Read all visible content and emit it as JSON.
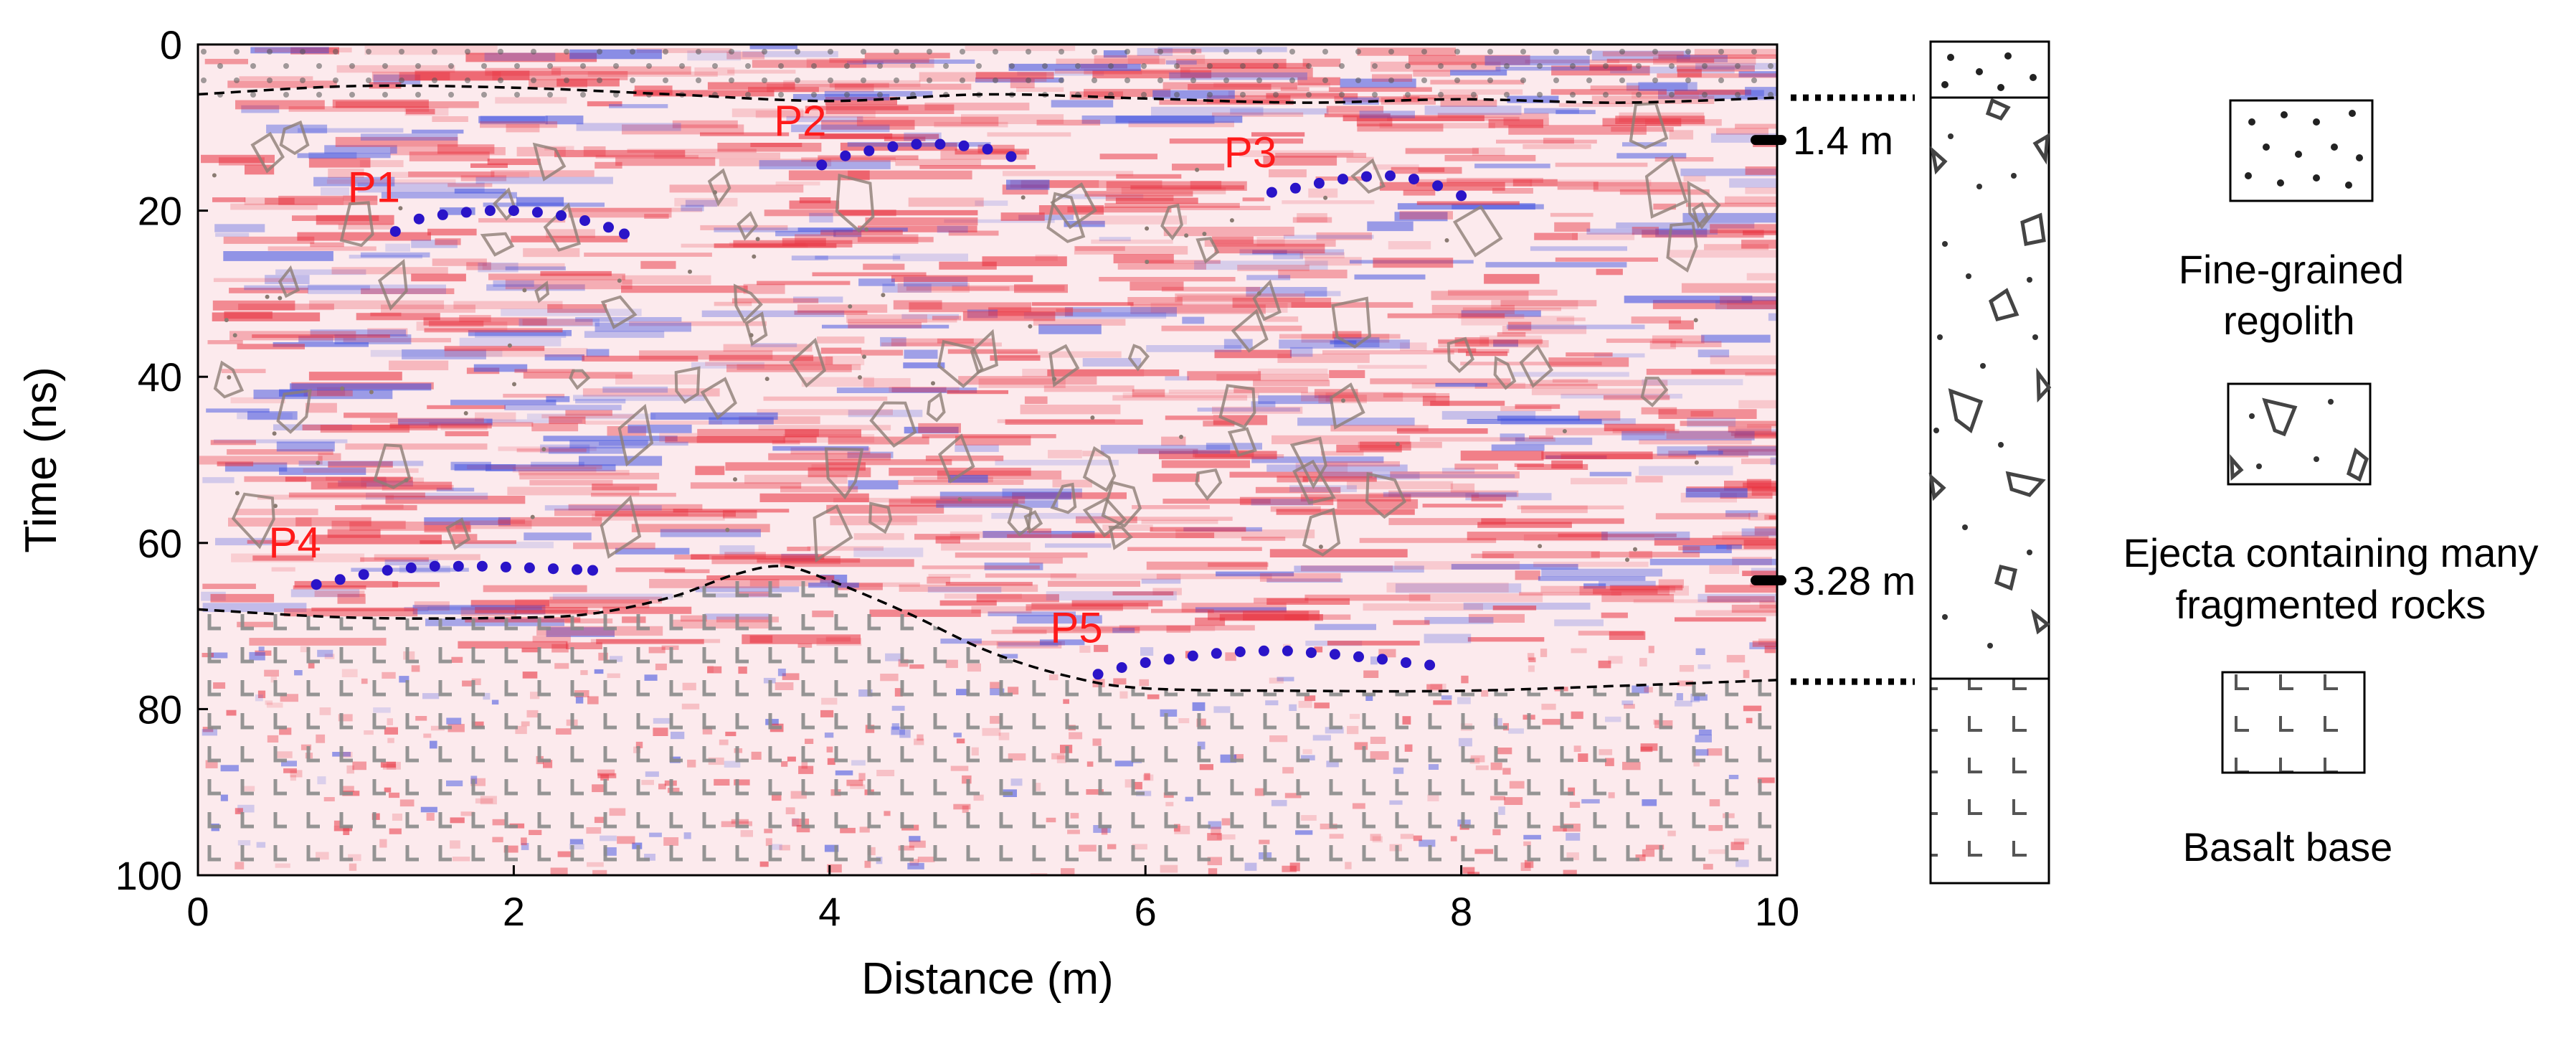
{
  "chart_data": {
    "type": "scatter",
    "title": "",
    "xlabel": "Distance (m)",
    "ylabel": "Time (ns)",
    "xlim": [
      0,
      10
    ],
    "ylim": [
      100,
      0
    ],
    "x_ticks": [
      0,
      2,
      4,
      6,
      8,
      10
    ],
    "y_ticks": [
      0,
      20,
      40,
      60,
      80,
      100
    ],
    "x_tick_labels": [
      "0",
      "2",
      "4",
      "6",
      "8",
      "10"
    ],
    "y_tick_labels": [
      "0",
      "20",
      "40",
      "60",
      "80",
      "100"
    ],
    "background": "GPR radargram (red/blue amplitude image)",
    "series": [
      {
        "name": "P1",
        "x": [
          1.25,
          1.4,
          1.55,
          1.7,
          1.85,
          2.0,
          2.15,
          2.3,
          2.45,
          2.6,
          2.7
        ],
        "y": [
          22.5,
          21.0,
          20.5,
          20.2,
          20.0,
          20.0,
          20.2,
          20.6,
          21.2,
          22.0,
          22.8
        ]
      },
      {
        "name": "P2",
        "x": [
          3.95,
          4.1,
          4.25,
          4.4,
          4.55,
          4.7,
          4.85,
          5.0,
          5.15
        ],
        "y": [
          14.5,
          13.4,
          12.8,
          12.3,
          12.0,
          12.0,
          12.2,
          12.6,
          13.5
        ]
      },
      {
        "name": "P3",
        "x": [
          6.8,
          6.95,
          7.1,
          7.25,
          7.4,
          7.55,
          7.7,
          7.85,
          8.0
        ],
        "y": [
          17.8,
          17.3,
          16.7,
          16.2,
          15.9,
          15.8,
          16.2,
          17.0,
          18.2
        ]
      },
      {
        "name": "P4",
        "x": [
          0.75,
          0.9,
          1.05,
          1.2,
          1.35,
          1.5,
          1.65,
          1.8,
          1.95,
          2.1,
          2.25,
          2.4,
          2.5
        ],
        "y": [
          65.0,
          64.4,
          63.8,
          63.3,
          63.0,
          62.8,
          62.8,
          62.8,
          62.9,
          63.0,
          63.1,
          63.2,
          63.3
        ]
      },
      {
        "name": "P5",
        "x": [
          5.7,
          5.85,
          6.0,
          6.15,
          6.3,
          6.45,
          6.6,
          6.75,
          6.9,
          7.05,
          7.2,
          7.35,
          7.5,
          7.65,
          7.8
        ],
        "y": [
          75.8,
          75.0,
          74.4,
          74.0,
          73.6,
          73.3,
          73.1,
          73.0,
          73.0,
          73.2,
          73.4,
          73.7,
          74.0,
          74.4,
          74.7
        ]
      }
    ],
    "boundaries": [
      {
        "name": "regolith-ejecta interface",
        "x": [
          0,
          1,
          2,
          3,
          4,
          5,
          6,
          7,
          8,
          9,
          10
        ],
        "y": [
          6.0,
          5.0,
          5.2,
          6.0,
          6.8,
          6.0,
          6.5,
          7.0,
          6.6,
          7.0,
          6.4
        ]
      },
      {
        "name": "ejecta-basalt interface",
        "x": [
          0,
          1,
          2,
          2.5,
          3,
          3.4,
          3.7,
          4.0,
          4.5,
          5.0,
          5.5,
          6.0,
          7.0,
          8.0,
          9.0,
          10.0
        ],
        "y": [
          68.0,
          69.0,
          69.0,
          68.5,
          66.5,
          63.8,
          62.8,
          64.5,
          68.5,
          73.0,
          76.0,
          77.5,
          77.8,
          77.8,
          77.2,
          76.5
        ]
      }
    ],
    "depth_markers": [
      {
        "label": "1.4 m",
        "time": 11.5
      },
      {
        "label": "3.28 m",
        "time": 64.5
      }
    ]
  },
  "legend": {
    "items": [
      {
        "label_lines": [
          "Fine-grained",
          "regolith"
        ]
      },
      {
        "label_lines": [
          "Ejecta containing many",
          "fragmented rocks"
        ]
      },
      {
        "label_lines": [
          "Basalt base"
        ]
      }
    ]
  },
  "colors": {
    "pick_dots": "#2a14c8",
    "pick_labels": "#ff1a1a",
    "radar_red": "#e8323f",
    "radar_blue": "#3d4fe0",
    "rock_outline": "#8d7e76",
    "basalt_mark": "#8a8a8a"
  }
}
